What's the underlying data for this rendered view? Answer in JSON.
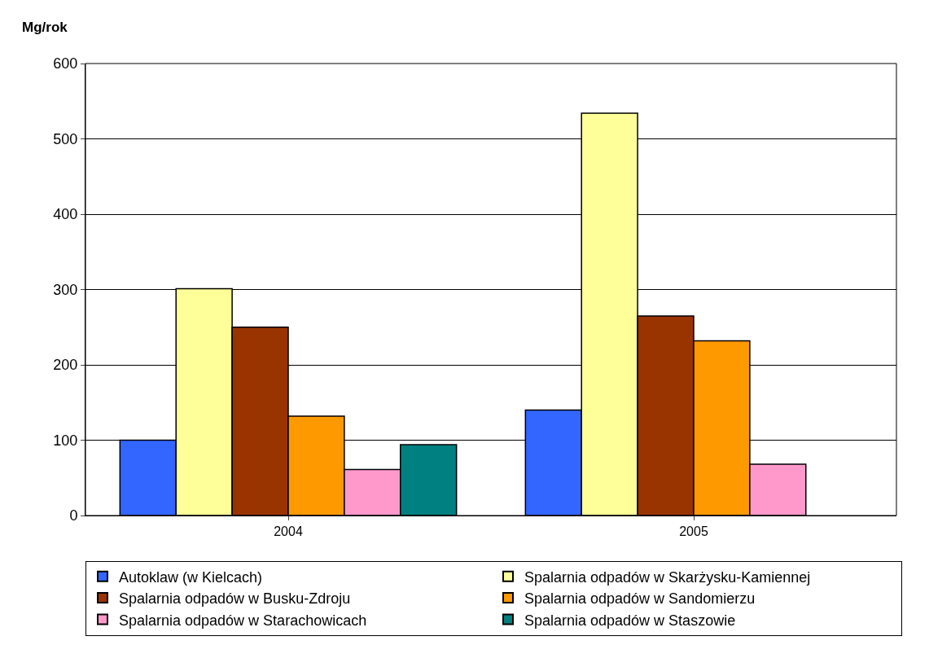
{
  "chart_data": {
    "type": "bar",
    "ylabel": "Mg/rok",
    "categories": [
      "2004",
      "2005"
    ],
    "series": [
      {
        "name": "Autoklaw (w Kielcach)",
        "color": "#3366ff",
        "values": [
          100,
          140
        ]
      },
      {
        "name": "Spalarnia odpadów w Skarżysku-Kamiennej",
        "color": "#ffff99",
        "values": [
          301,
          534
        ]
      },
      {
        "name": "Spalarnia odpadów w Busku-Zdroju",
        "color": "#993300",
        "values": [
          250,
          265
        ]
      },
      {
        "name": "Spalarnia odpadów w Sandomierzu",
        "color": "#ff9900",
        "values": [
          132,
          232
        ]
      },
      {
        "name": "Spalarnia odpadów w Starachowicach",
        "color": "#ff99cc",
        "values": [
          61,
          68
        ]
      },
      {
        "name": "Spalarnia odpadów w Staszowie",
        "color": "#008080",
        "values": [
          94,
          null
        ]
      }
    ],
    "ylim": [
      0,
      600
    ],
    "yticks": [
      0,
      100,
      200,
      300,
      400,
      500,
      600
    ],
    "grid": "y",
    "legend": "bottom"
  }
}
